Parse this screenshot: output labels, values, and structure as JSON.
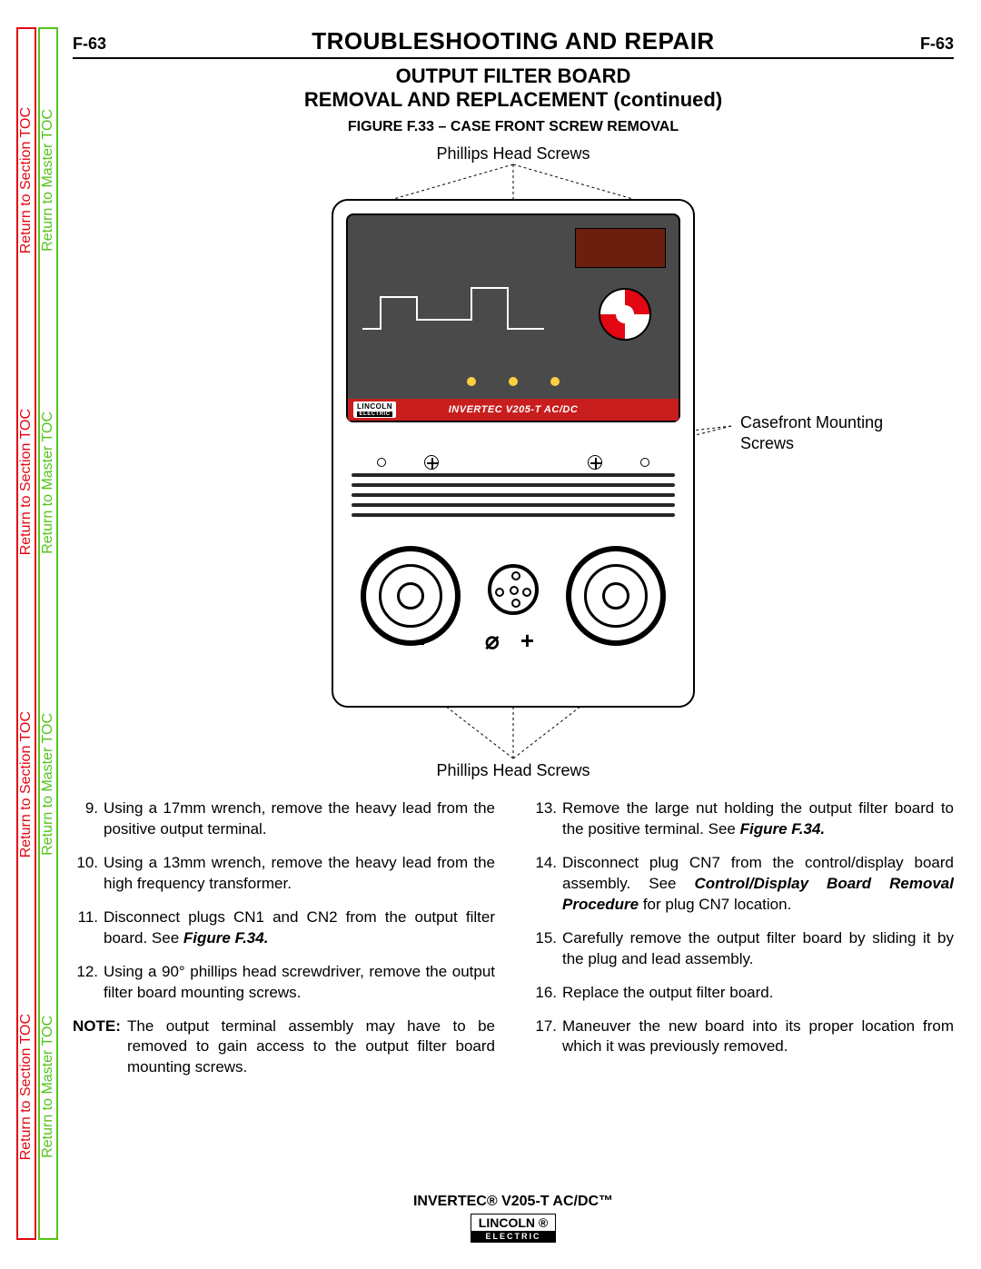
{
  "sideTabs": {
    "sectionLabel": "Return to Section TOC",
    "masterLabel": "Return to Master TOC",
    "sectionColor": "#e30613",
    "masterColor": "#52c41a",
    "repeat": 4
  },
  "header": {
    "pageNum": "F-63",
    "title": "TROUBLESHOOTING AND REPAIR"
  },
  "subtitle1": "OUTPUT FILTER BOARD",
  "subtitle2": "REMOVAL AND REPLACEMENT (continued)",
  "figure": {
    "caption": "FIGURE F.33 – CASE FRONT SCREW REMOVAL",
    "labelTop": "Phillips Head Screws",
    "labelSide": "Casefront Mounting Screws",
    "labelBottom": "Phillips Head Screws",
    "panelModel": "INVERTEC V205-T AC/DC",
    "panelBrand": "LINCOLN"
  },
  "steps": {
    "left": [
      {
        "n": "9.",
        "t": "Using a 17mm wrench, remove the heavy lead from the positive output terminal."
      },
      {
        "n": "10.",
        "t": "Using a 13mm wrench, remove the heavy lead from the high frequency transformer."
      },
      {
        "n": "11.",
        "t": "Disconnect plugs CN1 and CN2 from the output filter board.  See ",
        "b": "Figure F.34."
      },
      {
        "n": "12.",
        "t": "Using a 90° phillips head screwdriver, remove the output filter board mounting screws."
      }
    ],
    "note": {
      "label": "NOTE:",
      "t": "The output terminal assembly may have to be removed to gain access to the output filter board mounting screws."
    },
    "right": [
      {
        "n": "13.",
        "t": "Remove the large nut holding the output filter board to the positive terminal.  See ",
        "b": "Figure F.34."
      },
      {
        "n": "14.",
        "t": "Disconnect plug CN7 from the control/display board assembly.  See ",
        "b": "Control/Display Board Removal Procedure",
        "t2": " for plug CN7 location."
      },
      {
        "n": "15.",
        "t": "Carefully remove the output filter board by sliding it by the plug and lead assembly."
      },
      {
        "n": "16.",
        "t": "Replace the output filter board."
      },
      {
        "n": "17.",
        "t": "Maneuver the new board into its proper location from which it was previously removed."
      }
    ]
  },
  "footer": {
    "model": "INVERTEC® V205-T AC/DC™",
    "brand": "LINCOLN ®",
    "brandSub": "ELECTRIC"
  }
}
